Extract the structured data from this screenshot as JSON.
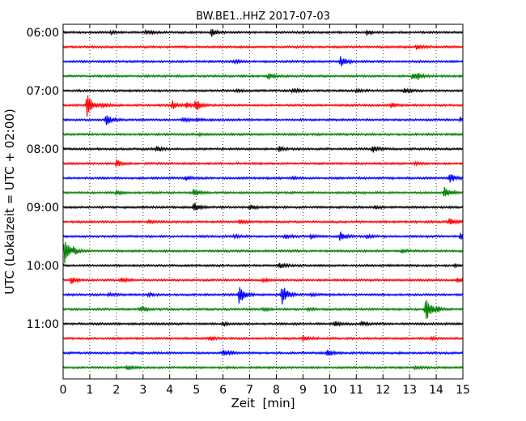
{
  "chart_data": {
    "type": "line",
    "title": "BW.BE1..HHZ 2017-07-03",
    "xlabel": "Zeit  [min]",
    "ylabel": "UTC (Lokalzeit = UTC + 02:00)",
    "xlim": [
      0,
      15
    ],
    "x_ticks": [
      "0",
      "1",
      "2",
      "3",
      "4",
      "5",
      "6",
      "7",
      "8",
      "9",
      "10",
      "11",
      "12",
      "13",
      "14",
      "15"
    ],
    "y_tick_labels": [
      "06:00",
      "07:00",
      "08:00",
      "09:00",
      "10:00",
      "11:00"
    ],
    "grid": "vertical dotted at every minute",
    "trace_colors": [
      "#000000",
      "#ff0000",
      "#0000ff",
      "#008000"
    ],
    "traces": [
      {
        "start": "06:00",
        "events": [
          [
            1.8,
            0.15
          ],
          [
            3.1,
            0.3
          ],
          [
            5.55,
            0.6
          ],
          [
            11.4,
            0.35
          ]
        ]
      },
      {
        "start": "06:15",
        "events": [
          [
            13.25,
            0.4
          ]
        ]
      },
      {
        "start": "06:30",
        "events": [
          [
            6.4,
            0.2
          ],
          [
            10.4,
            0.7
          ]
        ]
      },
      {
        "start": "06:45",
        "events": [
          [
            7.7,
            0.5
          ],
          [
            13.1,
            0.5
          ],
          [
            13.3,
            0.3
          ]
        ]
      },
      {
        "start": "07:00",
        "events": [
          [
            6.5,
            0.2
          ],
          [
            8.6,
            0.4
          ],
          [
            11.0,
            0.2
          ],
          [
            12.8,
            0.3
          ]
        ]
      },
      {
        "start": "07:15",
        "events": [
          [
            0.9,
            1.9
          ],
          [
            1.5,
            0.3
          ],
          [
            4.1,
            0.6
          ],
          [
            4.6,
            0.4
          ],
          [
            4.95,
            0.85
          ],
          [
            12.3,
            0.3
          ]
        ]
      },
      {
        "start": "07:30",
        "events": [
          [
            1.6,
            0.8
          ],
          [
            4.5,
            0.3
          ],
          [
            5.0,
            0.2
          ],
          [
            14.9,
            0.3
          ]
        ]
      },
      {
        "start": "07:45",
        "events": [
          [
            5.1,
            0.1
          ]
        ]
      },
      {
        "start": "08:00",
        "events": [
          [
            3.5,
            0.4
          ],
          [
            8.1,
            0.3
          ],
          [
            11.6,
            0.5
          ]
        ]
      },
      {
        "start": "08:15",
        "events": [
          [
            2.0,
            0.5
          ],
          [
            13.2,
            0.2
          ]
        ]
      },
      {
        "start": "08:30",
        "events": [
          [
            4.6,
            0.3
          ],
          [
            8.6,
            0.2
          ],
          [
            14.5,
            0.7
          ]
        ]
      },
      {
        "start": "08:45",
        "events": [
          [
            2.0,
            0.3
          ],
          [
            4.9,
            0.6
          ],
          [
            14.3,
            0.8
          ]
        ]
      },
      {
        "start": "09:00",
        "events": [
          [
            4.9,
            0.7
          ],
          [
            7.0,
            0.3
          ],
          [
            11.7,
            0.2
          ]
        ]
      },
      {
        "start": "09:15",
        "events": [
          [
            3.2,
            0.3
          ],
          [
            6.6,
            0.3
          ],
          [
            14.5,
            0.5
          ]
        ]
      },
      {
        "start": "09:30",
        "events": [
          [
            6.4,
            0.2
          ],
          [
            8.3,
            0.35
          ],
          [
            9.3,
            0.35
          ],
          [
            10.4,
            0.75
          ],
          [
            11.4,
            0.2
          ],
          [
            14.9,
            0.6
          ]
        ]
      },
      {
        "start": "09:45",
        "events": [
          [
            0.05,
            1.7
          ],
          [
            0.4,
            0.4
          ],
          [
            12.7,
            0.2
          ]
        ]
      },
      {
        "start": "10:00",
        "events": [
          [
            8.1,
            0.4
          ],
          [
            14.7,
            0.2
          ]
        ]
      },
      {
        "start": "10:15",
        "events": [
          [
            0.3,
            0.5
          ],
          [
            2.2,
            0.3
          ],
          [
            7.5,
            0.2
          ],
          [
            14.8,
            0.3
          ]
        ]
      },
      {
        "start": "10:30",
        "events": [
          [
            1.7,
            0.2
          ],
          [
            3.2,
            0.3
          ],
          [
            6.6,
            1.4
          ],
          [
            8.2,
            1.6
          ],
          [
            9.3,
            0.2
          ]
        ]
      },
      {
        "start": "10:45",
        "events": [
          [
            2.9,
            0.4
          ],
          [
            7.5,
            0.2
          ],
          [
            9.2,
            0.2
          ],
          [
            13.6,
            1.9
          ],
          [
            14.0,
            0.3
          ]
        ]
      },
      {
        "start": "11:00",
        "events": [
          [
            6.0,
            0.2
          ],
          [
            10.2,
            0.3
          ],
          [
            11.2,
            0.3
          ]
        ]
      },
      {
        "start": "11:15",
        "events": [
          [
            5.5,
            0.3
          ],
          [
            9.0,
            0.4
          ],
          [
            13.8,
            0.2
          ]
        ]
      },
      {
        "start": "11:30",
        "events": [
          [
            6.0,
            0.5
          ],
          [
            9.9,
            0.55
          ]
        ]
      },
      {
        "start": "11:45",
        "events": [
          [
            2.4,
            0.3
          ],
          [
            13.2,
            0.2
          ]
        ]
      }
    ]
  }
}
